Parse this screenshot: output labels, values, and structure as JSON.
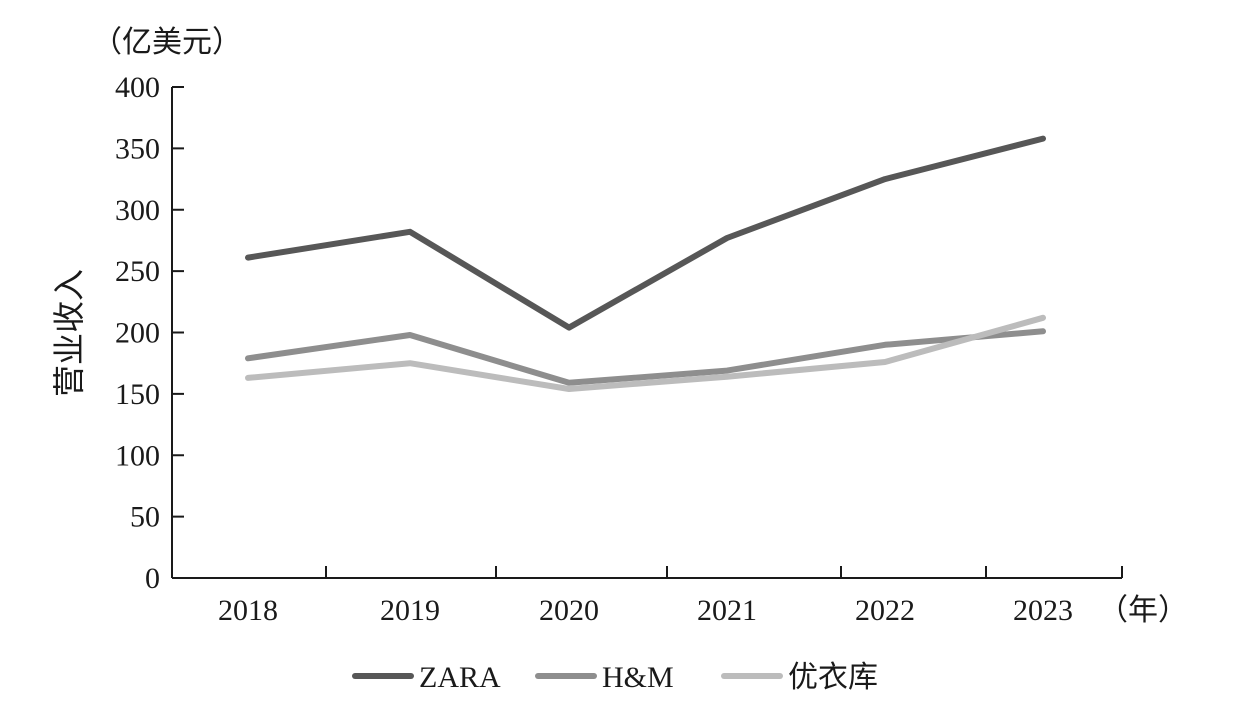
{
  "chart_data": {
    "type": "line",
    "title": "",
    "ylabel": "营业收入",
    "y_unit": "（亿美元）",
    "x_unit": "（年）",
    "xlabel": "",
    "categories": [
      "2018",
      "2019",
      "2020",
      "2021",
      "2022",
      "2023"
    ],
    "ylim": [
      0,
      400
    ],
    "yticks": [
      0,
      50,
      100,
      150,
      200,
      250,
      300,
      350,
      400
    ],
    "grid": false,
    "legend_position": "bottom",
    "series": [
      {
        "name": "ZARA",
        "values": [
          261,
          282,
          204,
          277,
          325,
          358
        ],
        "color": "#575757"
      },
      {
        "name": "H&M",
        "values": [
          179,
          198,
          159,
          169,
          190,
          201
        ],
        "color": "#8e8e8e"
      },
      {
        "name": "优衣库",
        "values": [
          163,
          175,
          154,
          164,
          176,
          212
        ],
        "color": "#bcbcbc"
      }
    ]
  }
}
